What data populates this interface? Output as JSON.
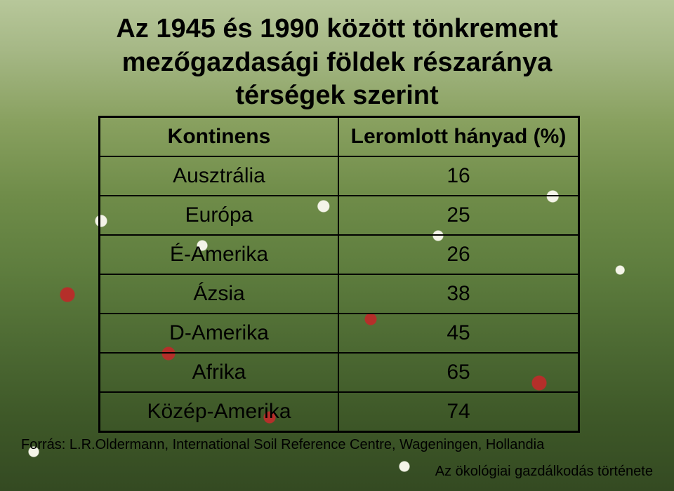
{
  "title_line1": "Az 1945 és 1990 között tönkrement",
  "title_line2": "mezőgazdasági földek részaránya",
  "title_line3": "térségek szerint",
  "table": {
    "header_left": "Kontinens",
    "header_right": "Leromlott hányad (%)",
    "rows": [
      {
        "region": "Ausztrália",
        "value": "16"
      },
      {
        "region": "Európa",
        "value": "25"
      },
      {
        "region": "É-Amerika",
        "value": "26"
      },
      {
        "region": "Ázsia",
        "value": "38"
      },
      {
        "region": "D-Amerika",
        "value": "45"
      },
      {
        "region": "Afrika",
        "value": "65"
      },
      {
        "region": "Közép-Amerika",
        "value": "74"
      }
    ],
    "border_color": "#000000",
    "text_color": "#000000",
    "header_fontsize": 30,
    "cell_fontsize": 30
  },
  "source_text": "Forrás: L.R.Oldermann, International Soil Reference Centre, Wageningen, Hollandia",
  "footer_text": "Az ökológiai gazdálkodás története",
  "colors": {
    "title_color": "#000000",
    "bg_top": "#b7c79a",
    "bg_bottom": "#344a22",
    "flower_white": "#f4f4e8",
    "flower_red": "#b52f2a"
  },
  "typography": {
    "title_fontsize": 38,
    "title_weight": "bold",
    "source_fontsize": 20,
    "footer_fontsize": 20,
    "font_family": "Arial"
  }
}
